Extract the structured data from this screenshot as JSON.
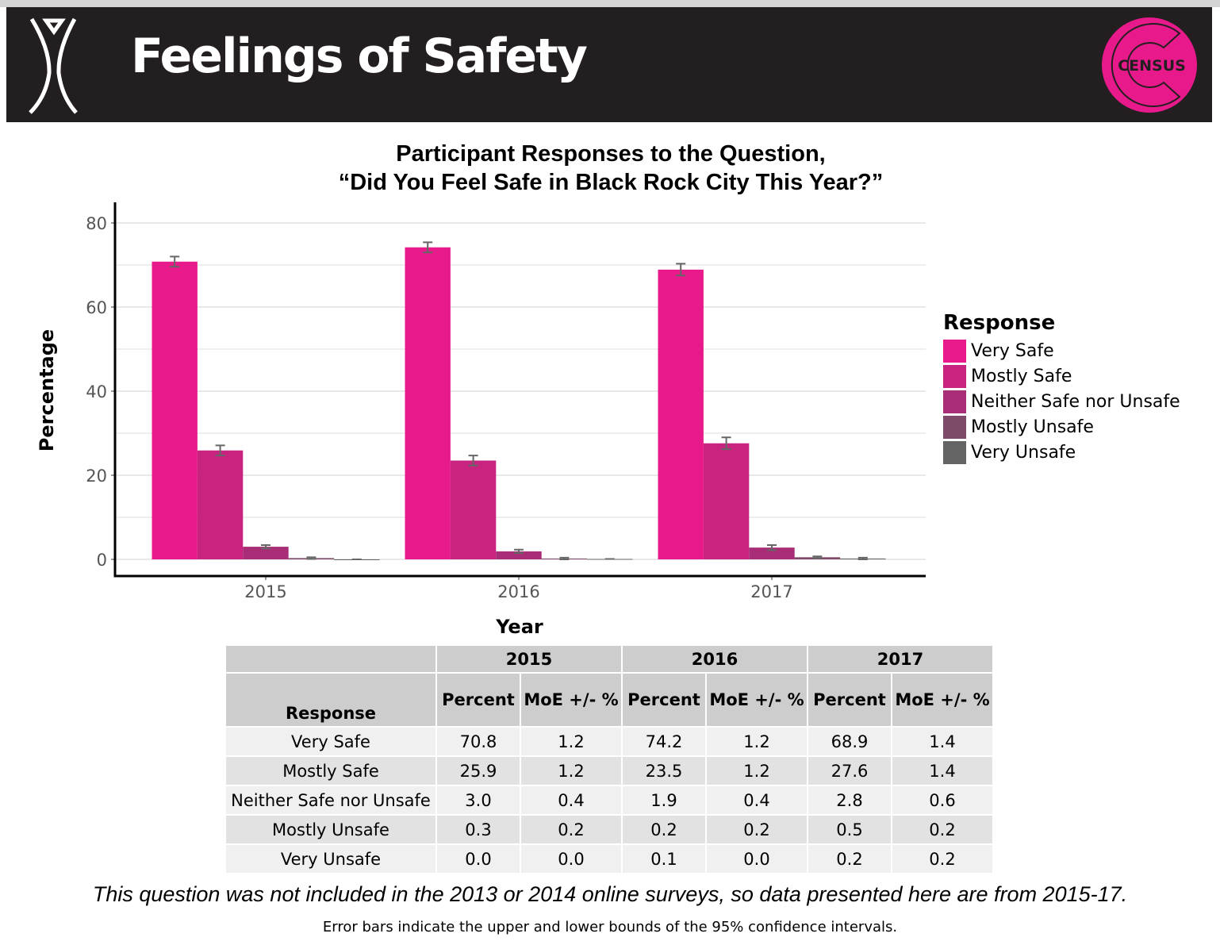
{
  "header": {
    "title": "Feelings of Safety",
    "logo_text": "CENSUS"
  },
  "colors": {
    "Very Safe": "#E8198B",
    "Mostly Safe": "#C8237E",
    "Neither Safe nor Unsafe": "#A82C76",
    "Mostly Unsafe": "#7E4A68",
    "Very Unsafe": "#646464",
    "header_bg": "#231f20"
  },
  "chart_data": {
    "type": "bar",
    "title_line1": "Participant Responses to the Question,",
    "title_line2": "“Did You Feel Safe in Black Rock City This Year?”",
    "xlabel": "Year",
    "ylabel": "Percentage",
    "ylim": [
      0,
      80
    ],
    "yticks": [
      "0",
      "20",
      "40",
      "60",
      "80"
    ],
    "categories": [
      "2015",
      "2016",
      "2017"
    ],
    "legend_title": "Response",
    "legend_position": "right",
    "grid": true,
    "series": [
      {
        "name": "Very Safe",
        "values": [
          70.8,
          74.2,
          68.9
        ],
        "moe": [
          1.2,
          1.2,
          1.4
        ]
      },
      {
        "name": "Mostly Safe",
        "values": [
          25.9,
          23.5,
          27.6
        ],
        "moe": [
          1.2,
          1.2,
          1.4
        ]
      },
      {
        "name": "Neither Safe nor  Unsafe",
        "values": [
          3.0,
          1.9,
          2.8
        ],
        "moe": [
          0.4,
          0.4,
          0.6
        ]
      },
      {
        "name": "Mostly Unsafe",
        "values": [
          0.3,
          0.2,
          0.5
        ],
        "moe": [
          0.2,
          0.2,
          0.2
        ]
      },
      {
        "name": "Very Unsafe",
        "values": [
          0.0,
          0.1,
          0.2
        ],
        "moe": [
          0.0,
          0.0,
          0.2
        ]
      }
    ]
  },
  "table": {
    "years": [
      "2015",
      "2016",
      "2017"
    ],
    "response_header": "Response",
    "sub_headers": [
      "Percent",
      "MoE +/- %"
    ],
    "rows": [
      [
        "Very Safe",
        "70.8",
        "1.2",
        "74.2",
        "1.2",
        "68.9",
        "1.4"
      ],
      [
        "Mostly Safe",
        "25.9",
        "1.2",
        "23.5",
        "1.2",
        "27.6",
        "1.4"
      ],
      [
        "Neither Safe nor Unsafe",
        "3.0",
        "0.4",
        "1.9",
        "0.4",
        "2.8",
        "0.6"
      ],
      [
        "Mostly Unsafe",
        "0.3",
        "0.2",
        "0.2",
        "0.2",
        "0.5",
        "0.2"
      ],
      [
        "Very Unsafe",
        "0.0",
        "0.0",
        "0.1",
        "0.0",
        "0.2",
        "0.2"
      ]
    ]
  },
  "notes": {
    "main": "This question was not included in the 2013 or 2014 online surveys, so  data presented here are from 2015-17.",
    "sub": "Error bars indicate the upper and lower bounds of the 95% confidence intervals."
  }
}
